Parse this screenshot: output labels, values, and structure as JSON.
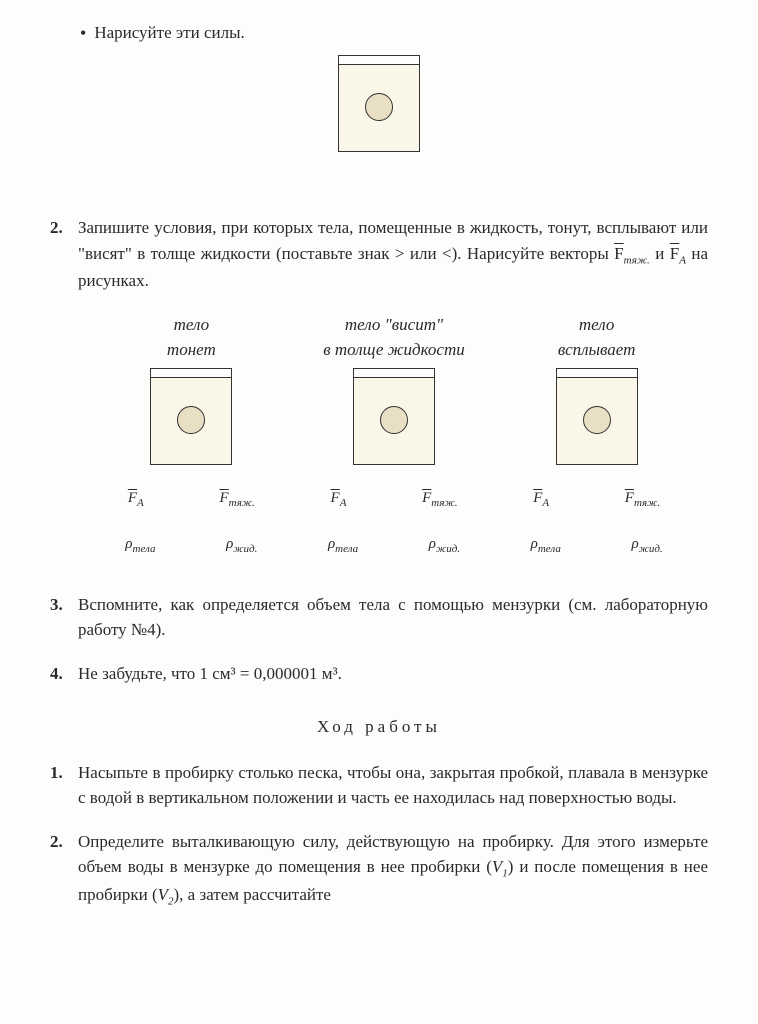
{
  "bullet1": "Нарисуйте эти силы.",
  "q2": {
    "num": "2.",
    "text_before": "Запишите условия, при которых тела, помещенные в жидкость, тонут, всплывают или \"висят\" в толще жидкости (поставьте знак > или <). Нарисуйте векторы ",
    "f_tyazh": "F",
    "sub_tyazh": "тяж.",
    "and": " и ",
    "f_a": "F",
    "sub_a": "А",
    "text_after": " на рисунках."
  },
  "cols": {
    "c1_l1": "тело",
    "c1_l2": "тонет",
    "c2_l1": "тело \"висит\"",
    "c2_l2": "в толще жидкости",
    "c3_l1": "тело",
    "c3_l2": "всплывает"
  },
  "formula": {
    "Fa": "F",
    "Fa_sub": "А",
    "Ft": "F",
    "Ft_sub": "тяж.",
    "rho": "ρ",
    "rho_tela": "тела",
    "rho_zhid": "жид."
  },
  "q3": {
    "num": "3.",
    "text": "Вспомните, как определяется объем тела с помощью мензурки (см. лабораторную работу №4)."
  },
  "q4": {
    "num": "4.",
    "text": "Не забудьте, что 1 см³ = 0,000001 м³."
  },
  "section": "Ход работы",
  "p1": {
    "num": "1.",
    "text": "Насыпьте в пробирку столько песка, чтобы она, закрытая пробкой, плавала в мензурке с водой в вертикальном положении и часть ее находилась над поверхностью воды."
  },
  "p2": {
    "num": "2.",
    "text_before": "Определите выталкивающую силу, действующую на пробирку. Для этого измерьте объем воды в мензурке до помещения в нее пробирки (",
    "v1": "V",
    "v1_sub": "1",
    "mid": ") и после помещения в нее пробирки (",
    "v2": "V",
    "v2_sub": "2",
    "after": "), а затем рассчитайте"
  },
  "colors": {
    "box_fill": "#faf6e8",
    "circle_fill": "#e8dfc4",
    "border": "#333333",
    "bg": "#fdfdfb",
    "text": "#2a2a2a"
  }
}
